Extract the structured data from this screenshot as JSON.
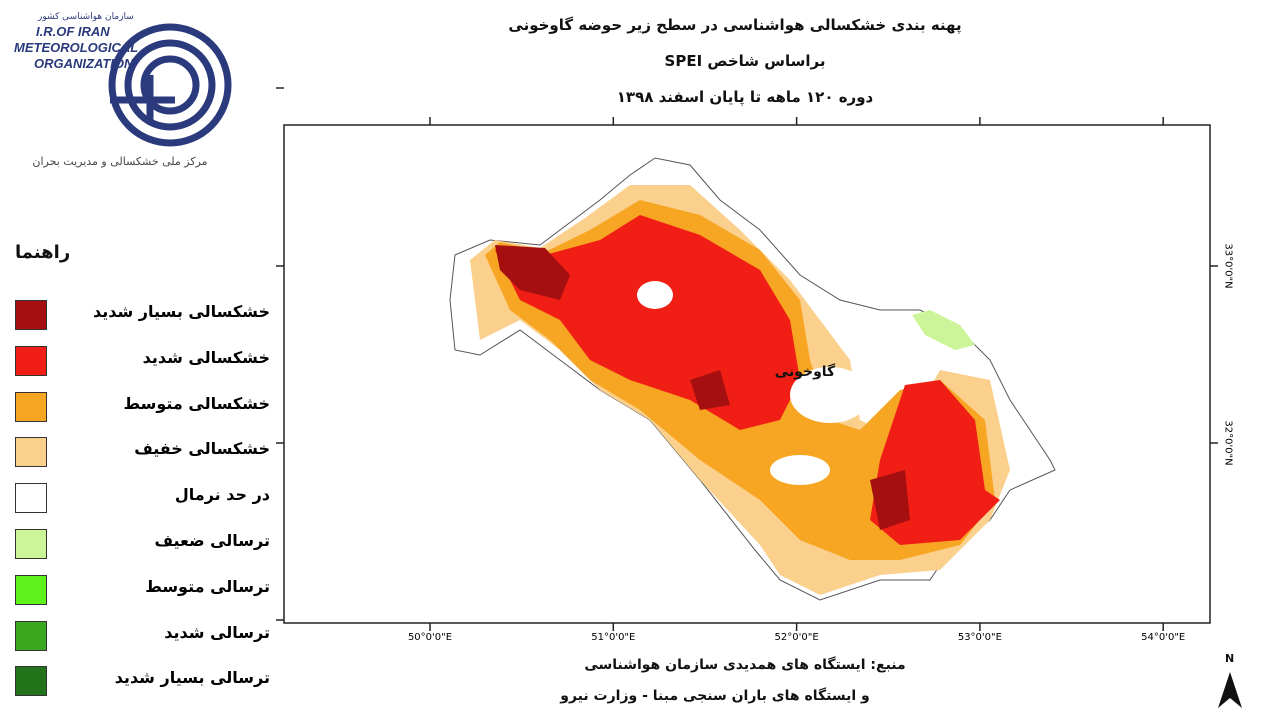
{
  "logo": {
    "persian_name": "سازمان هواشناسی کشور",
    "line1": "I.R.OF IRAN",
    "line2": "METEOROLOGICAL",
    "line3": "ORGANIZATION",
    "center": "مرکز ملی خشکسالی و مدیریت بحران"
  },
  "header": {
    "title": "پهنه بندی خشکسالی هواشناسی در سطح زیر حوضه گاوخونی",
    "subtitle": "براساس شاخص SPEI",
    "period": "دوره ۱۲۰ ماهه تا پایان اسفند ۱۳۹۸"
  },
  "legend": {
    "title": "راهنما",
    "items": [
      {
        "label": "خشکسالی بسیار شدید",
        "color": "#a50f0f"
      },
      {
        "label": "خشکسالی شدید",
        "color": "#f01e14"
      },
      {
        "label": "خشکسالی متوسط",
        "color": "#f7a623"
      },
      {
        "label": "خشکسالی خفیف",
        "color": "#fbd08c"
      },
      {
        "label": "در حد نرمال",
        "color": "#ffffff"
      },
      {
        "label": "ترسالی ضعیف",
        "color": "#ccf59a"
      },
      {
        "label": "ترسالی متوسط",
        "color": "#5df21c"
      },
      {
        "label": "ترسالی شدید",
        "color": "#3aa81e"
      },
      {
        "label": "ترسالی بسیار شدید",
        "color": "#23731a"
      }
    ]
  },
  "map": {
    "region_label": "گاوخونی",
    "lon_labels": [
      "50°0'0\"E",
      "51°0'0\"E",
      "52°0'0\"E",
      "53°0'0\"E",
      "54°0'0\"E"
    ],
    "lat_labels": [
      "33°0'0\"N",
      "32°0'0\"N"
    ],
    "north": "N"
  },
  "source": {
    "line1": "منبع: ایستگاه های همدیدی سازمان هواشناسی",
    "line2": "و ایستگاه های باران سنجی مبنا - وزارت نیرو"
  }
}
